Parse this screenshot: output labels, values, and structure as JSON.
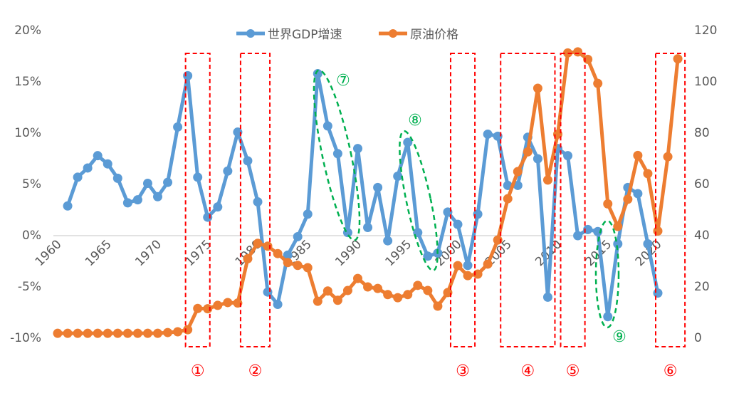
{
  "chart_data": {
    "type": "line",
    "title": "",
    "x": [
      1960,
      1961,
      1962,
      1963,
      1964,
      1965,
      1966,
      1967,
      1968,
      1969,
      1970,
      1971,
      1972,
      1973,
      1974,
      1975,
      1976,
      1977,
      1978,
      1979,
      1980,
      1981,
      1982,
      1983,
      1984,
      1985,
      1986,
      1987,
      1988,
      1989,
      1990,
      1991,
      1992,
      1993,
      1994,
      1995,
      1996,
      1997,
      1998,
      1999,
      2000,
      2001,
      2002,
      2003,
      2004,
      2005,
      2006,
      2007,
      2008,
      2009,
      2010,
      2011,
      2012,
      2013,
      2014,
      2015,
      2016,
      2017,
      2018,
      2019,
      2020,
      2021,
      2022
    ],
    "xticks": [
      "1960",
      "1965",
      "1970",
      "1975",
      "1980",
      "1985",
      "1990",
      "1995",
      "2000",
      "2005",
      "2010",
      "2015",
      "2020"
    ],
    "y_left": {
      "ticks": [
        "20%",
        "15%",
        "10%",
        "5%",
        "0%",
        "-5%",
        "-10%"
      ],
      "range": [
        -10,
        20
      ]
    },
    "y_right": {
      "ticks": [
        "120",
        "100",
        "80",
        "60",
        "40",
        "20",
        "0"
      ],
      "range": [
        0,
        120
      ]
    },
    "legend_position": "top",
    "series": [
      {
        "name": "世界GDP增速",
        "axis": "left",
        "color": "#5B9BD5",
        "values": [
          null,
          2.9,
          5.7,
          6.6,
          7.8,
          7.0,
          5.6,
          3.2,
          3.5,
          5.1,
          3.8,
          5.2,
          10.6,
          15.6,
          5.7,
          1.8,
          2.8,
          6.3,
          10.1,
          7.3,
          3.3,
          -5.5,
          -6.7,
          -1.9,
          -0.1,
          2.1,
          15.8,
          10.7,
          8.0,
          0.3,
          8.5,
          0.8,
          4.7,
          -0.5,
          5.8,
          9.1,
          0.3,
          -2.0,
          -1.7,
          2.3,
          1.1,
          -2.9,
          2.1,
          9.9,
          9.7,
          4.9,
          4.9,
          9.6,
          7.5,
          -6.0,
          8.5,
          7.8,
          0.0,
          0.6,
          0.4,
          -7.9,
          -0.8,
          4.7,
          4.1,
          -0.8,
          -5.6,
          null,
          null
        ]
      },
      {
        "name": "原油价格",
        "axis": "right",
        "color": "#ED7D31",
        "values": [
          1.9,
          1.9,
          1.9,
          1.9,
          1.9,
          1.9,
          1.9,
          1.9,
          1.9,
          1.9,
          1.9,
          2.2,
          2.5,
          3.3,
          11.6,
          11.5,
          12.8,
          13.9,
          13.7,
          31,
          37,
          35.9,
          33,
          29.5,
          28.4,
          27.5,
          14.4,
          18.4,
          14.8,
          18.6,
          23.3,
          20,
          19.4,
          17,
          15.8,
          17,
          20.6,
          18.6,
          12.5,
          17.8,
          28.3,
          24.4,
          25,
          28.9,
          38.3,
          54.4,
          65,
          72.7,
          97.5,
          61.7,
          79.6,
          111.3,
          111.7,
          108.8,
          99.4,
          52.4,
          43.6,
          54.2,
          71.3,
          64.2,
          41.8,
          70.8,
          109
        ]
      }
    ],
    "annotations": {
      "boxes": [
        {
          "label": "①",
          "from": 1973,
          "to": 1975
        },
        {
          "label": "②",
          "from": 1978.5,
          "to": 1981
        },
        {
          "label": "③",
          "from": 1999.5,
          "to": 2001.5
        },
        {
          "label": "④",
          "from": 2004.5,
          "to": 2009.5
        },
        {
          "label": "⑤",
          "from": 2010.5,
          "to": 2012.5
        },
        {
          "label": "⑥",
          "from": 2020,
          "to": 2022.5
        }
      ],
      "ellipses": [
        {
          "label": "⑦",
          "from": 1986,
          "to": 1989
        },
        {
          "label": "⑧",
          "from": 1995,
          "to": 1998
        },
        {
          "label": "⑨",
          "from": 2014,
          "to": 2016
        }
      ],
      "box_color": "#FF0000",
      "ellipse_color": "#00B050"
    }
  }
}
